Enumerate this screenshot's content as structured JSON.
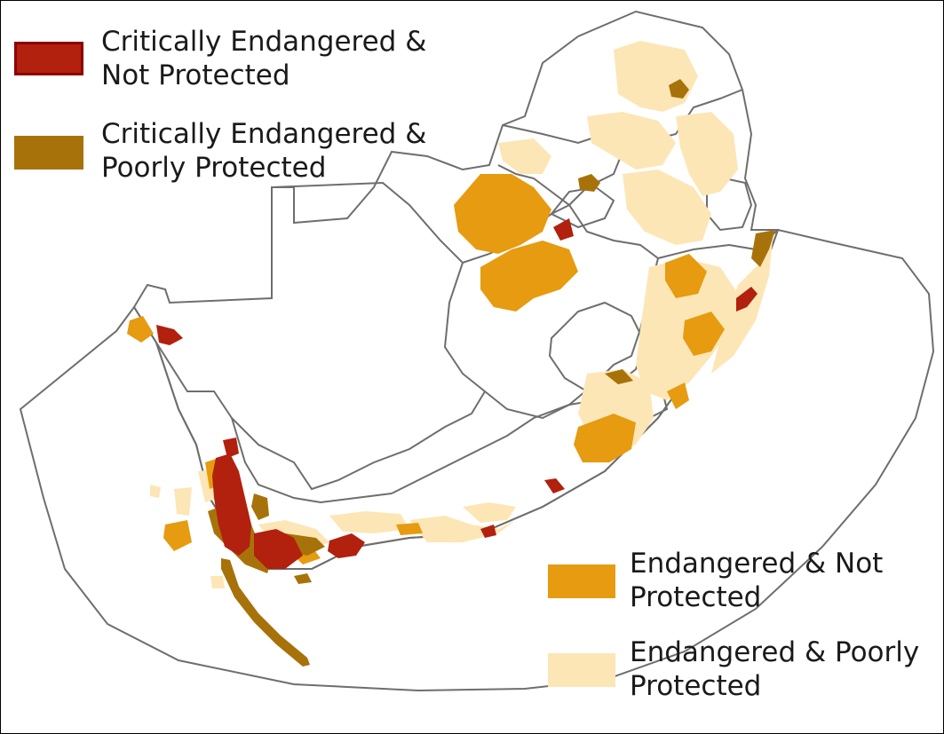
{
  "legend": [
    {
      "id": "cr-not",
      "line1": "Critically Endangered &",
      "line2": "Not Protected",
      "color": "#b2200e",
      "stroke": "#8e0000"
    },
    {
      "id": "cr-poor",
      "line1": "Critically Endangered &",
      "line2": "Poorly Protected",
      "color": "#a8720a",
      "stroke": "#a8720a"
    },
    {
      "id": "en-not",
      "line1": "Endangered & Not",
      "line2": "Protected",
      "color": "#e69b10",
      "stroke": "#e69b10"
    },
    {
      "id": "en-poor",
      "line1": "Endangered & Poorly",
      "line2": "Protected",
      "color": "#fde6b6",
      "stroke": "#fde6b6"
    }
  ],
  "colors": {
    "boundary": "#6e6e6e",
    "background": "#ffffff"
  }
}
